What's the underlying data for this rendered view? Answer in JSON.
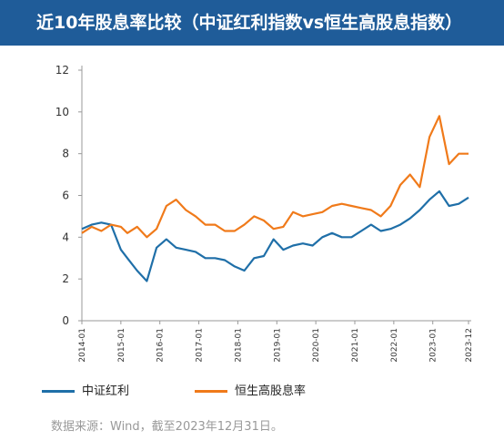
{
  "title": "近10年股息率比较（中证红利指数vs恒生高股息指数）",
  "source": "数据来源：Wind，截至2023年12月31日。",
  "colors": {
    "series1": "#1f6fa8",
    "series2": "#f07a1a",
    "axis": "#999999"
  },
  "chart_data": {
    "type": "line",
    "title": "近10年股息率比较（中证红利指数vs恒生高股息指数）",
    "xlabel": "",
    "ylabel": "",
    "ylim": [
      0,
      12
    ],
    "yticks": [
      0,
      2,
      4,
      6,
      8,
      10,
      12
    ],
    "xlim": [
      "2014-01",
      "2023-12"
    ],
    "xticks": [
      "2014-01",
      "2015-01",
      "2016-01",
      "2017-01",
      "2018-01",
      "2019-01",
      "2020-01",
      "2021-01",
      "2022-01",
      "2023-01",
      "2023-12"
    ],
    "grid": false,
    "legend": "bottom-left",
    "series": [
      {
        "name": "中证红利",
        "x": [
          "2014-01",
          "2014-04",
          "2014-07",
          "2014-10",
          "2015-01",
          "2015-03",
          "2015-06",
          "2015-09",
          "2015-12",
          "2016-03",
          "2016-06",
          "2016-09",
          "2016-12",
          "2017-03",
          "2017-06",
          "2017-09",
          "2017-12",
          "2018-03",
          "2018-06",
          "2018-09",
          "2018-12",
          "2019-03",
          "2019-06",
          "2019-09",
          "2019-12",
          "2020-03",
          "2020-06",
          "2020-09",
          "2020-12",
          "2021-03",
          "2021-06",
          "2021-09",
          "2021-12",
          "2022-03",
          "2022-06",
          "2022-09",
          "2022-12",
          "2023-03",
          "2023-06",
          "2023-09",
          "2023-12"
        ],
        "values": [
          4.4,
          4.6,
          4.7,
          4.6,
          3.4,
          3.0,
          2.4,
          1.9,
          3.5,
          3.9,
          3.5,
          3.4,
          3.3,
          3.0,
          3.0,
          2.9,
          2.6,
          2.4,
          3.0,
          3.1,
          3.9,
          3.4,
          3.6,
          3.7,
          3.6,
          4.0,
          4.2,
          4.0,
          4.0,
          4.3,
          4.6,
          4.3,
          4.4,
          4.6,
          4.9,
          5.3,
          5.8,
          6.2,
          5.5,
          5.6,
          5.9
        ]
      },
      {
        "name": "恒生高股息率",
        "x": [
          "2014-01",
          "2014-04",
          "2014-07",
          "2014-10",
          "2015-01",
          "2015-03",
          "2015-06",
          "2015-09",
          "2015-12",
          "2016-03",
          "2016-06",
          "2016-09",
          "2016-12",
          "2017-03",
          "2017-06",
          "2017-09",
          "2017-12",
          "2018-03",
          "2018-06",
          "2018-09",
          "2018-12",
          "2019-03",
          "2019-06",
          "2019-09",
          "2019-12",
          "2020-03",
          "2020-06",
          "2020-09",
          "2020-12",
          "2021-03",
          "2021-06",
          "2021-09",
          "2021-12",
          "2022-03",
          "2022-06",
          "2022-09",
          "2022-12",
          "2023-03",
          "2023-06",
          "2023-09",
          "2023-12"
        ],
        "values": [
          4.2,
          4.5,
          4.3,
          4.6,
          4.5,
          4.2,
          4.5,
          4.0,
          4.4,
          5.5,
          5.8,
          5.3,
          5.0,
          4.6,
          4.6,
          4.3,
          4.3,
          4.6,
          5.0,
          4.8,
          4.4,
          4.5,
          5.2,
          5.0,
          5.1,
          5.2,
          5.5,
          5.6,
          5.5,
          5.4,
          5.3,
          5.0,
          5.5,
          6.5,
          7.0,
          6.4,
          8.8,
          9.8,
          7.5,
          8.0,
          8.0
        ]
      }
    ]
  }
}
